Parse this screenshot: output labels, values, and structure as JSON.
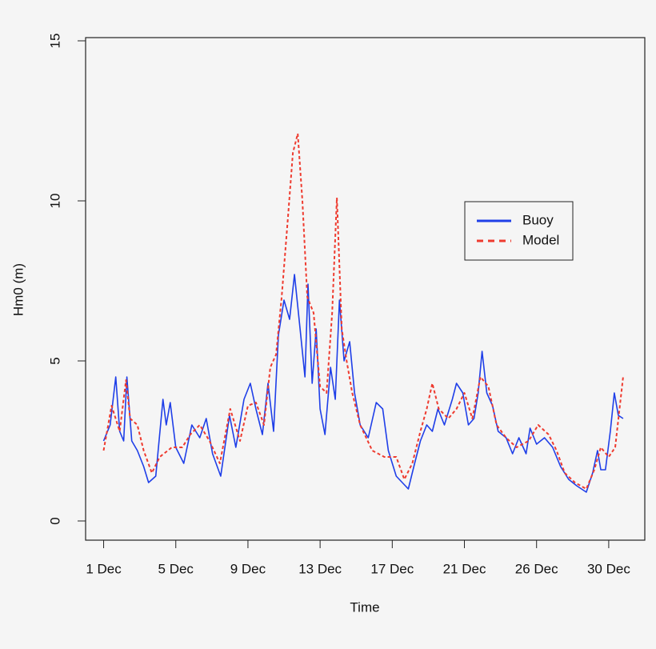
{
  "chart_data": {
    "type": "line",
    "xlabel": "Time",
    "ylabel": "Hm0 (m)",
    "xlim": [
      -1,
      30
    ],
    "ylim": [
      -0.6,
      15.1
    ],
    "xticks": [
      {
        "value": 0,
        "label": "1 Dec"
      },
      {
        "value": 4,
        "label": "5 Dec"
      },
      {
        "value": 8,
        "label": "9 Dec"
      },
      {
        "value": 12,
        "label": "13 Dec"
      },
      {
        "value": 16,
        "label": "17 Dec"
      },
      {
        "value": 20,
        "label": "21 Dec"
      },
      {
        "value": 24,
        "label": "26 Dec"
      },
      {
        "value": 28,
        "label": "30 Dec"
      }
    ],
    "yticks": [
      0,
      5,
      10,
      15
    ],
    "legend": "right",
    "series": [
      {
        "name": "Buoy",
        "color": "#1f3fe8",
        "dash": "solid",
        "x": [
          0,
          0.36,
          0.67,
          0.89,
          1.11,
          1.29,
          1.56,
          1.87,
          2.22,
          2.49,
          2.89,
          3.29,
          3.47,
          3.69,
          4.0,
          4.44,
          4.89,
          5.33,
          5.69,
          6.04,
          6.49,
          6.98,
          7.33,
          7.78,
          8.13,
          8.44,
          8.8,
          9.11,
          9.42,
          9.69,
          10.0,
          10.31,
          10.58,
          10.89,
          11.16,
          11.33,
          11.56,
          11.78,
          12.0,
          12.27,
          12.58,
          12.84,
          13.07,
          13.33,
          13.64,
          13.91,
          14.22,
          14.67,
          15.11,
          15.47,
          15.78,
          16.22,
          16.89,
          17.24,
          17.56,
          17.91,
          18.22,
          18.53,
          18.89,
          19.33,
          19.56,
          19.91,
          20.22,
          20.53,
          20.76,
          20.98,
          21.24,
          21.56,
          21.87,
          22.31,
          22.67,
          23.02,
          23.42,
          23.64,
          24.0,
          24.44,
          24.89,
          25.33,
          25.78,
          26.22,
          26.76,
          27.11,
          27.38,
          27.56,
          27.82,
          28.09,
          28.31,
          28.53,
          28.8
        ],
        "values": [
          2.5,
          3.0,
          4.5,
          2.8,
          2.5,
          4.5,
          2.5,
          2.2,
          1.7,
          1.2,
          1.4,
          3.8,
          3.0,
          3.7,
          2.3,
          1.8,
          3.0,
          2.6,
          3.2,
          2.1,
          1.4,
          3.3,
          2.3,
          3.8,
          4.3,
          3.5,
          2.7,
          4.3,
          2.8,
          5.8,
          6.9,
          6.3,
          7.7,
          6.0,
          4.5,
          7.4,
          4.3,
          6.0,
          3.5,
          2.7,
          4.8,
          3.8,
          6.9,
          5.0,
          5.6,
          4.0,
          3.0,
          2.6,
          3.7,
          3.5,
          2.2,
          1.4,
          1.0,
          1.8,
          2.5,
          3.0,
          2.8,
          3.5,
          3.0,
          3.8,
          4.3,
          4.0,
          3.0,
          3.2,
          4.0,
          5.3,
          4.0,
          3.6,
          2.8,
          2.6,
          2.1,
          2.6,
          2.1,
          2.9,
          2.4,
          2.6,
          2.3,
          1.7,
          1.3,
          1.1,
          0.9,
          1.5,
          2.2,
          1.6,
          1.6,
          2.8,
          4.0,
          3.3,
          3.2
        ]
      },
      {
        "name": "Model",
        "color": "#ee3b2f",
        "dash": "dashed",
        "x": [
          0,
          0.44,
          0.89,
          1.24,
          1.47,
          1.87,
          2.22,
          2.67,
          3.11,
          3.78,
          4.36,
          4.8,
          5.33,
          5.87,
          6.44,
          7.02,
          7.56,
          8.0,
          8.44,
          8.89,
          9.24,
          9.56,
          9.87,
          10.22,
          10.49,
          10.76,
          11.02,
          11.29,
          11.64,
          12.0,
          12.36,
          12.67,
          12.93,
          13.2,
          13.47,
          13.78,
          14.22,
          14.89,
          15.56,
          16.22,
          16.67,
          17.11,
          17.56,
          17.91,
          18.22,
          18.58,
          19.11,
          19.56,
          20.0,
          20.44,
          20.89,
          21.33,
          21.78,
          22.31,
          22.89,
          23.56,
          24.09,
          24.67,
          25.11,
          25.56,
          26.13,
          26.76,
          27.2,
          27.56,
          28.0,
          28.36,
          28.8
        ],
        "values": [
          2.2,
          3.6,
          2.8,
          4.4,
          3.2,
          3.0,
          2.2,
          1.5,
          2.0,
          2.3,
          2.3,
          2.7,
          3.0,
          2.5,
          1.8,
          3.5,
          2.5,
          3.6,
          3.7,
          3.0,
          4.8,
          5.2,
          7.0,
          9.5,
          11.5,
          12.1,
          10.0,
          7.0,
          6.5,
          4.2,
          4.0,
          6.5,
          10.1,
          6.0,
          5.0,
          4.0,
          3.0,
          2.2,
          2.0,
          2.0,
          1.3,
          1.8,
          2.8,
          3.5,
          4.3,
          3.5,
          3.2,
          3.5,
          4.0,
          3.2,
          4.5,
          4.2,
          3.0,
          2.6,
          2.3,
          2.5,
          3.0,
          2.7,
          2.2,
          1.5,
          1.2,
          1.0,
          1.6,
          2.3,
          2.0,
          2.3,
          4.5
        ]
      }
    ]
  }
}
